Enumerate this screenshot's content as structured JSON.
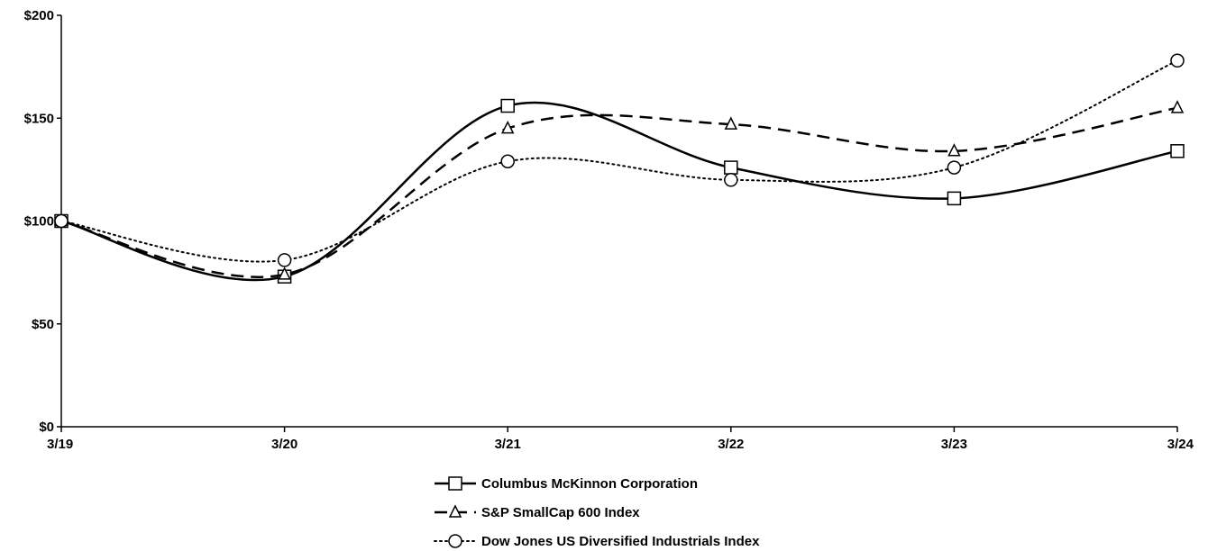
{
  "chart_data": {
    "type": "line",
    "title": "",
    "xlabel": "",
    "ylabel": "",
    "categories": [
      "3/19",
      "3/20",
      "3/21",
      "3/22",
      "3/23",
      "3/24"
    ],
    "ylim": [
      0,
      200
    ],
    "yticks": [
      0,
      50,
      100,
      150,
      200
    ],
    "ytick_labels": [
      "$0",
      "$50",
      "$100",
      "$150",
      "$200"
    ],
    "grid": false,
    "legend_placement": "bottom-center",
    "series": [
      {
        "name": "Columbus McKinnon Corporation",
        "values": [
          100,
          73,
          156,
          126,
          111,
          134
        ],
        "style": "solid",
        "marker": "square",
        "color": "#000000"
      },
      {
        "name": "S&P SmallCap 600 Index",
        "values": [
          100,
          74,
          145,
          147,
          134,
          155
        ],
        "style": "dashed",
        "marker": "triangle",
        "color": "#000000"
      },
      {
        "name": "Dow Jones US Diversified Industrials Index",
        "values": [
          100,
          81,
          129,
          120,
          126,
          178
        ],
        "style": "dotted",
        "marker": "circle",
        "color": "#000000"
      }
    ]
  }
}
